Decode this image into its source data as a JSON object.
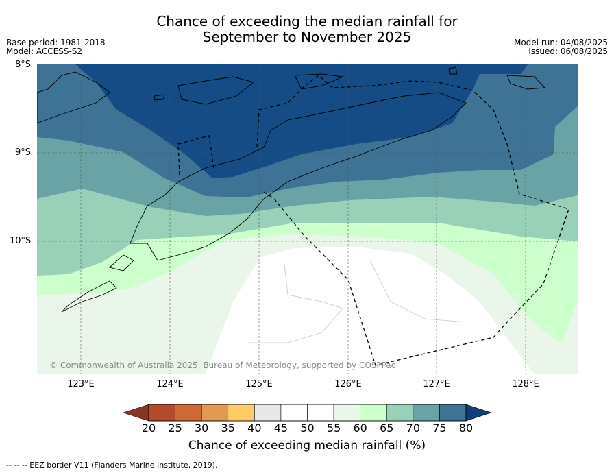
{
  "header": {
    "title_line1": "Chance of exceeding the median rainfall for",
    "title_line2": "September to November 2025",
    "base_period": "Base period: 1981-2018",
    "model": "Model: ACCESS-S2",
    "model_run": "Model run: 04/08/2025",
    "issued": "Issued: 06/08/2025"
  },
  "map": {
    "lat_labels": [
      "8°S",
      "9°S",
      "10°S"
    ],
    "lon_labels": [
      "123°E",
      "124°E",
      "125°E",
      "126°E",
      "127°E",
      "128°E"
    ],
    "copyright": "© Commonwealth of Australia 2025, Bureau of Meteorology, supported by COSPPac"
  },
  "colorbar": {
    "ticks": [
      "20",
      "25",
      "30",
      "35",
      "40",
      "45",
      "50",
      "55",
      "60",
      "65",
      "70",
      "75",
      "80"
    ],
    "colors": [
      "#b24a2b",
      "#cd6a38",
      "#e29a52",
      "#fdcc68",
      "#e8e8e8",
      "#ffffff",
      "#ffffff",
      "#eaf6ea",
      "#ccffcc",
      "#99d1b8",
      "#6aa3a6",
      "#3e7396",
      "#154c85"
    ],
    "title": "Chance of exceeding median rainfall (%)"
  },
  "footer": {
    "legend_line": "--  --  -- EEZ border V11 (Flanders Marine Institute, 2019)."
  }
}
